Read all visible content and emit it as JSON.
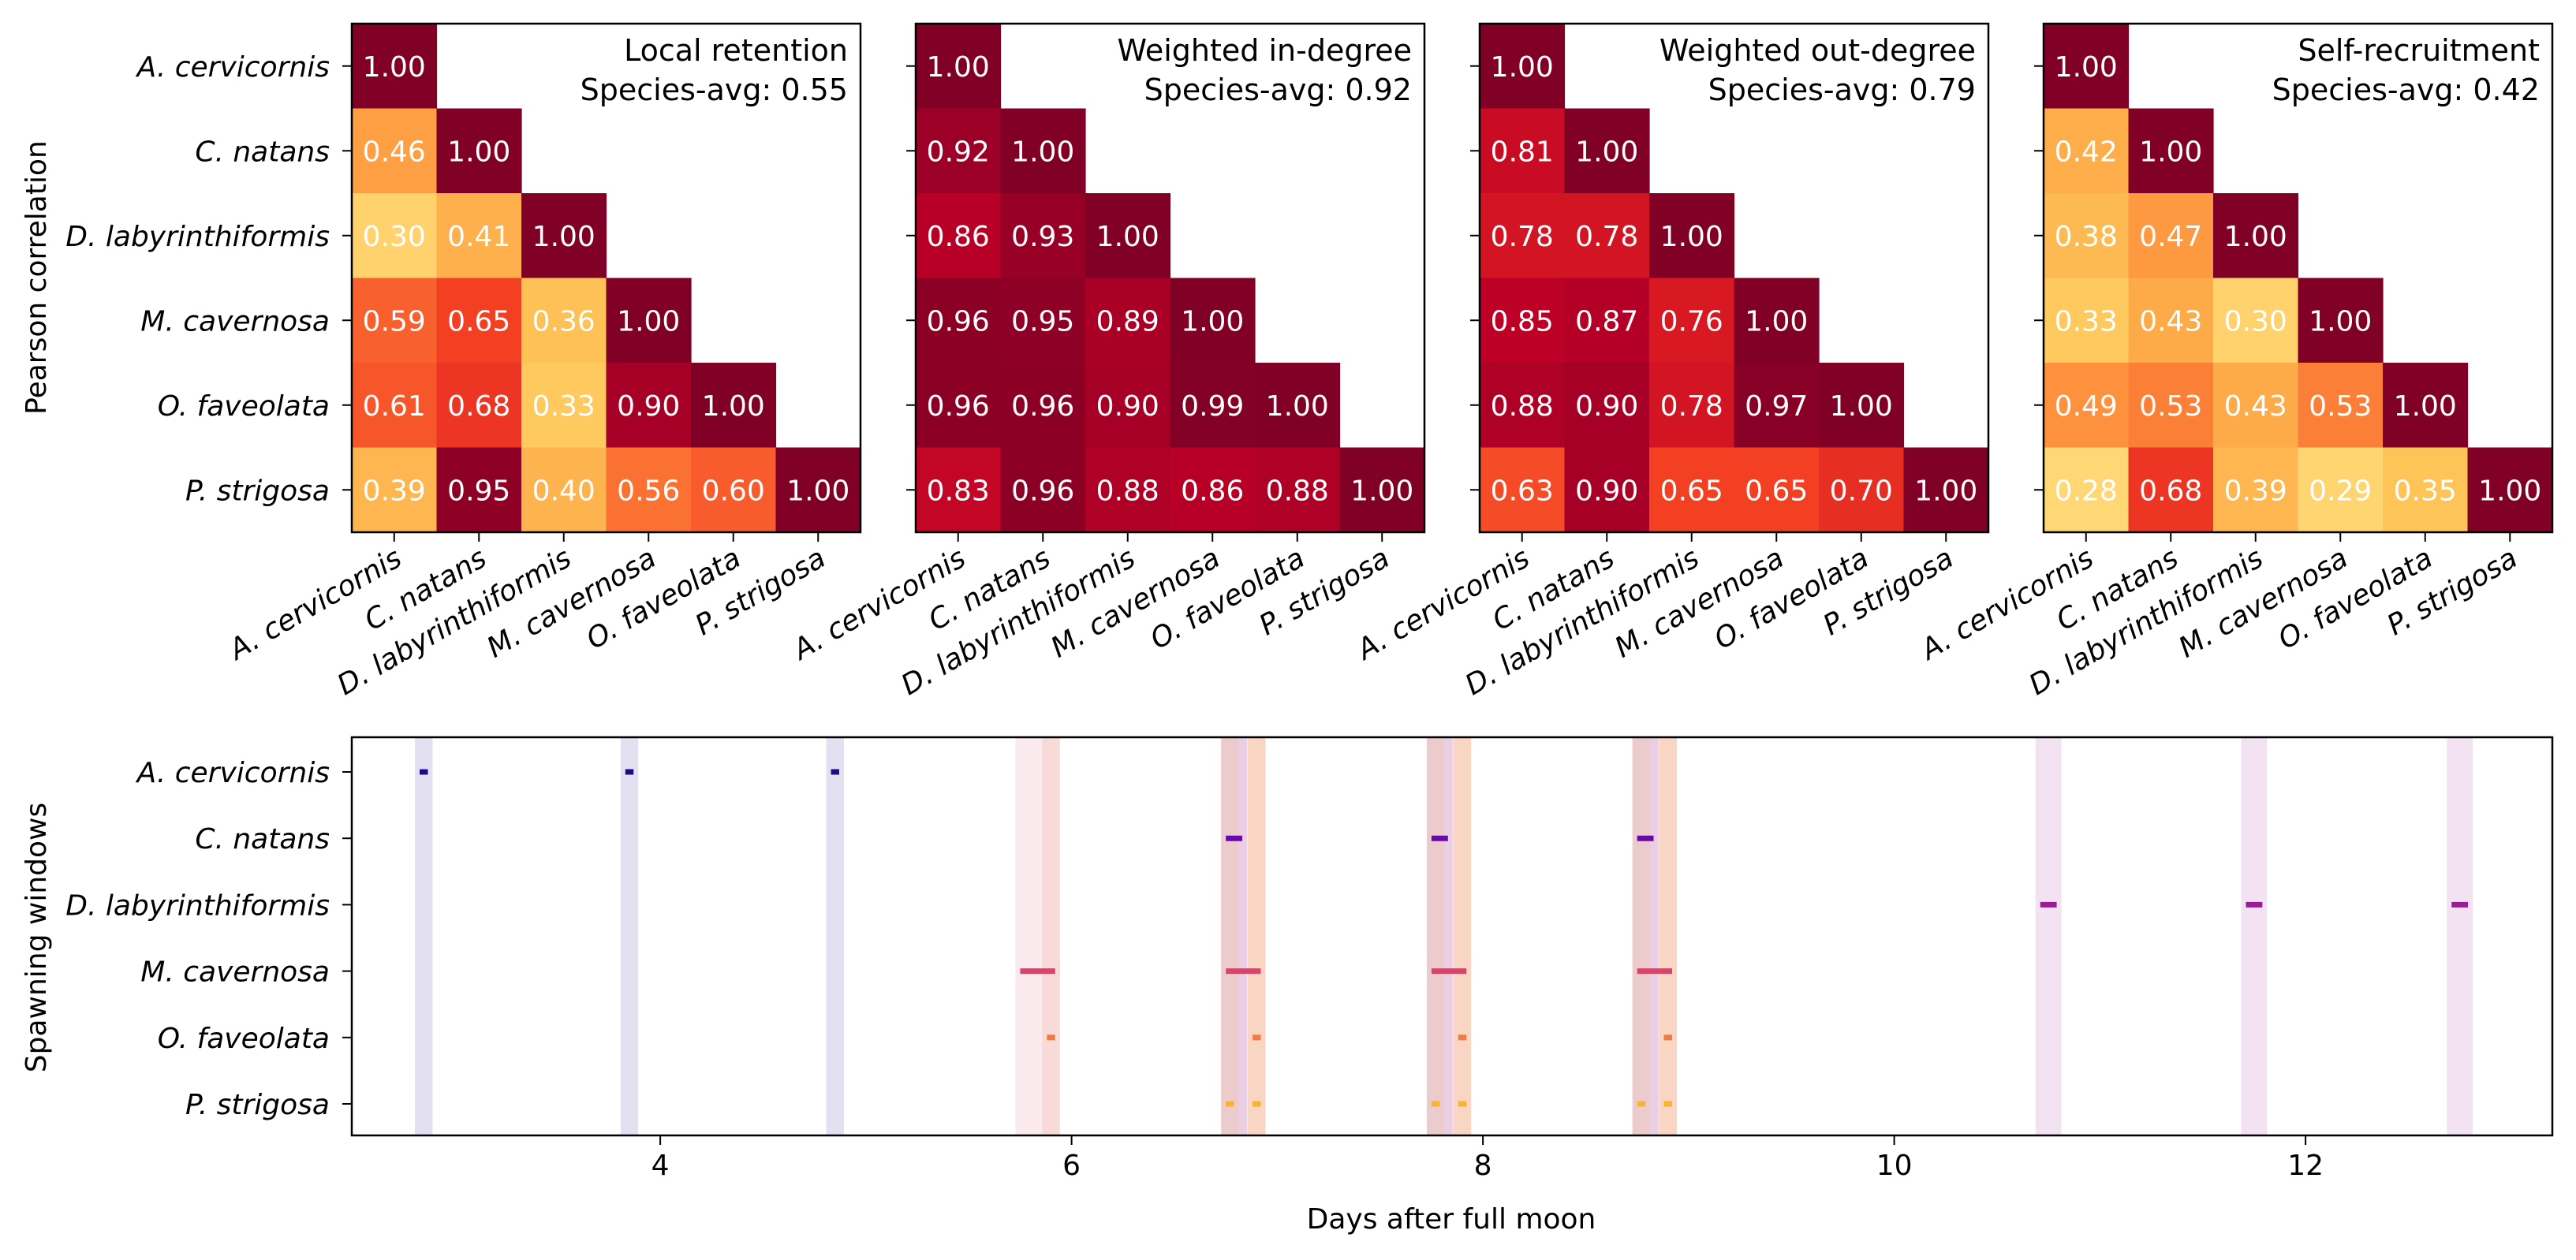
{
  "chart_data": [
    {
      "type": "heatmap",
      "title": "Local retention",
      "subtitle": "Species-avg: 0.55",
      "ylabel": "Pearson correlation",
      "labels": [
        "A. cervicornis",
        "C. natans",
        "D. labyrinthiformis",
        "M. cavernosa",
        "O. faveolata",
        "P. strigosa"
      ],
      "matrix": [
        [
          1.0
        ],
        [
          0.46,
          1.0
        ],
        [
          0.3,
          0.41,
          1.0
        ],
        [
          0.59,
          0.65,
          0.36,
          1.0
        ],
        [
          0.61,
          0.68,
          0.33,
          0.9,
          1.0
        ],
        [
          0.39,
          0.95,
          0.4,
          0.56,
          0.6,
          1.0
        ]
      ]
    },
    {
      "type": "heatmap",
      "title": "Weighted in-degree",
      "subtitle": "Species-avg: 0.92",
      "labels": [
        "A. cervicornis",
        "C. natans",
        "D. labyrinthiformis",
        "M. cavernosa",
        "O. faveolata",
        "P. strigosa"
      ],
      "matrix": [
        [
          1.0
        ],
        [
          0.92,
          1.0
        ],
        [
          0.86,
          0.93,
          1.0
        ],
        [
          0.96,
          0.95,
          0.89,
          1.0
        ],
        [
          0.96,
          0.96,
          0.9,
          0.99,
          1.0
        ],
        [
          0.83,
          0.96,
          0.88,
          0.86,
          0.88,
          1.0
        ]
      ]
    },
    {
      "type": "heatmap",
      "title": "Weighted out-degree",
      "subtitle": "Species-avg: 0.79",
      "labels": [
        "A. cervicornis",
        "C. natans",
        "D. labyrinthiformis",
        "M. cavernosa",
        "O. faveolata",
        "P. strigosa"
      ],
      "matrix": [
        [
          1.0
        ],
        [
          0.81,
          1.0
        ],
        [
          0.78,
          0.78,
          1.0
        ],
        [
          0.85,
          0.87,
          0.76,
          1.0
        ],
        [
          0.88,
          0.9,
          0.78,
          0.97,
          1.0
        ],
        [
          0.63,
          0.9,
          0.65,
          0.65,
          0.7,
          1.0
        ]
      ]
    },
    {
      "type": "heatmap",
      "title": "Self-recruitment",
      "subtitle": "Species-avg: 0.42",
      "labels": [
        "A. cervicornis",
        "C. natans",
        "D. labyrinthiformis",
        "M. cavernosa",
        "O. faveolata",
        "P. strigosa"
      ],
      "matrix": [
        [
          1.0
        ],
        [
          0.42,
          1.0
        ],
        [
          0.38,
          0.47,
          1.0
        ],
        [
          0.33,
          0.43,
          0.3,
          1.0
        ],
        [
          0.49,
          0.53,
          0.43,
          0.53,
          1.0
        ],
        [
          0.28,
          0.68,
          0.39,
          0.29,
          0.35,
          1.0
        ]
      ]
    },
    {
      "type": "timeline",
      "xlabel": "Days after full moon",
      "ylabel": "Spawning windows",
      "xlim": [
        2.5,
        13.2
      ],
      "xticks": [
        4,
        6,
        8,
        10,
        12
      ],
      "series": [
        {
          "name": "A. cervicornis",
          "color": "#1c0c8c",
          "windows": [
            [
              2.83,
              2.87
            ],
            [
              3.83,
              3.87
            ],
            [
              4.83,
              4.87
            ]
          ]
        },
        {
          "name": "C. natans",
          "color": "#6a0aa6",
          "windows": [
            [
              6.75,
              6.83
            ],
            [
              7.75,
              7.83
            ],
            [
              8.75,
              8.83
            ]
          ]
        },
        {
          "name": "D. labyrinthiformis",
          "color": "#9a1c96",
          "windows": [
            [
              10.71,
              10.79
            ],
            [
              11.71,
              11.79
            ],
            [
              12.71,
              12.79
            ]
          ]
        },
        {
          "name": "M. cavernosa",
          "color": "#d4476b",
          "windows": [
            [
              5.75,
              5.92
            ],
            [
              6.75,
              6.92
            ],
            [
              7.75,
              7.92
            ],
            [
              8.75,
              8.92
            ]
          ]
        },
        {
          "name": "O. faveolata",
          "color": "#f07c45",
          "windows": [
            [
              5.88,
              5.92
            ],
            [
              6.88,
              6.92
            ],
            [
              7.88,
              7.92
            ],
            [
              8.88,
              8.92
            ]
          ]
        },
        {
          "name": "P. strigosa",
          "color": "#fbb22e",
          "windows": [
            [
              6.75,
              6.79
            ],
            [
              6.88,
              6.92
            ],
            [
              7.75,
              7.79
            ],
            [
              7.88,
              7.92
            ],
            [
              8.75,
              8.79
            ],
            [
              8.88,
              8.92
            ]
          ]
        }
      ]
    }
  ]
}
